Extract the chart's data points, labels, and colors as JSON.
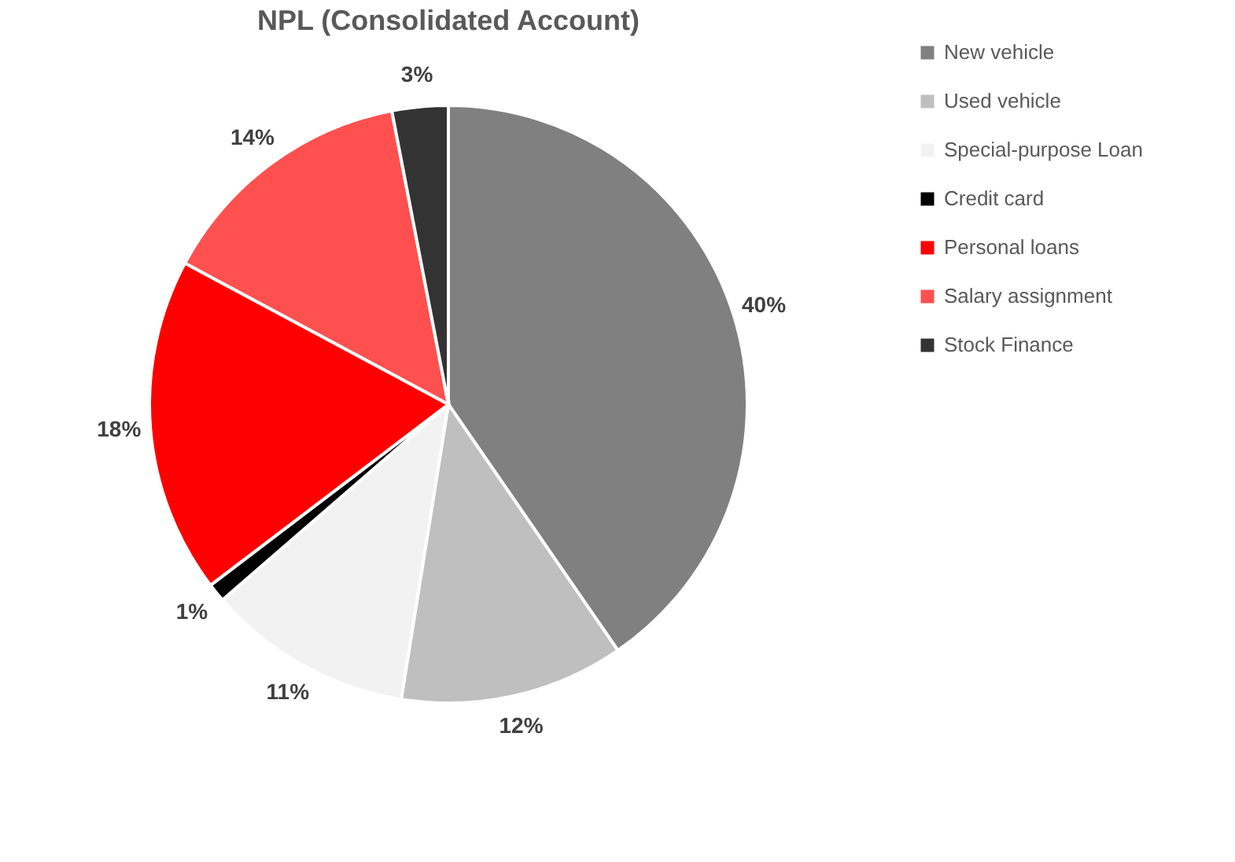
{
  "chart_data": {
    "type": "pie",
    "title": "NPL (Consolidated Account)",
    "categories": [
      "New vehicle",
      "Used vehicle",
      "Special-purpose Loan",
      "Credit card",
      "Personal loans",
      "Salary assignment",
      "Stock Finance"
    ],
    "values": [
      40,
      12,
      11,
      1,
      18,
      14,
      3
    ],
    "colors": [
      "#808080",
      "#bfbfbf",
      "#f2f2f2",
      "#000000",
      "#ff0000",
      "#ff5050",
      "#333333"
    ],
    "value_labels": [
      "40%",
      "12%",
      "11%",
      "1%",
      "18%",
      "14%",
      "3%"
    ],
    "legend": "right"
  }
}
